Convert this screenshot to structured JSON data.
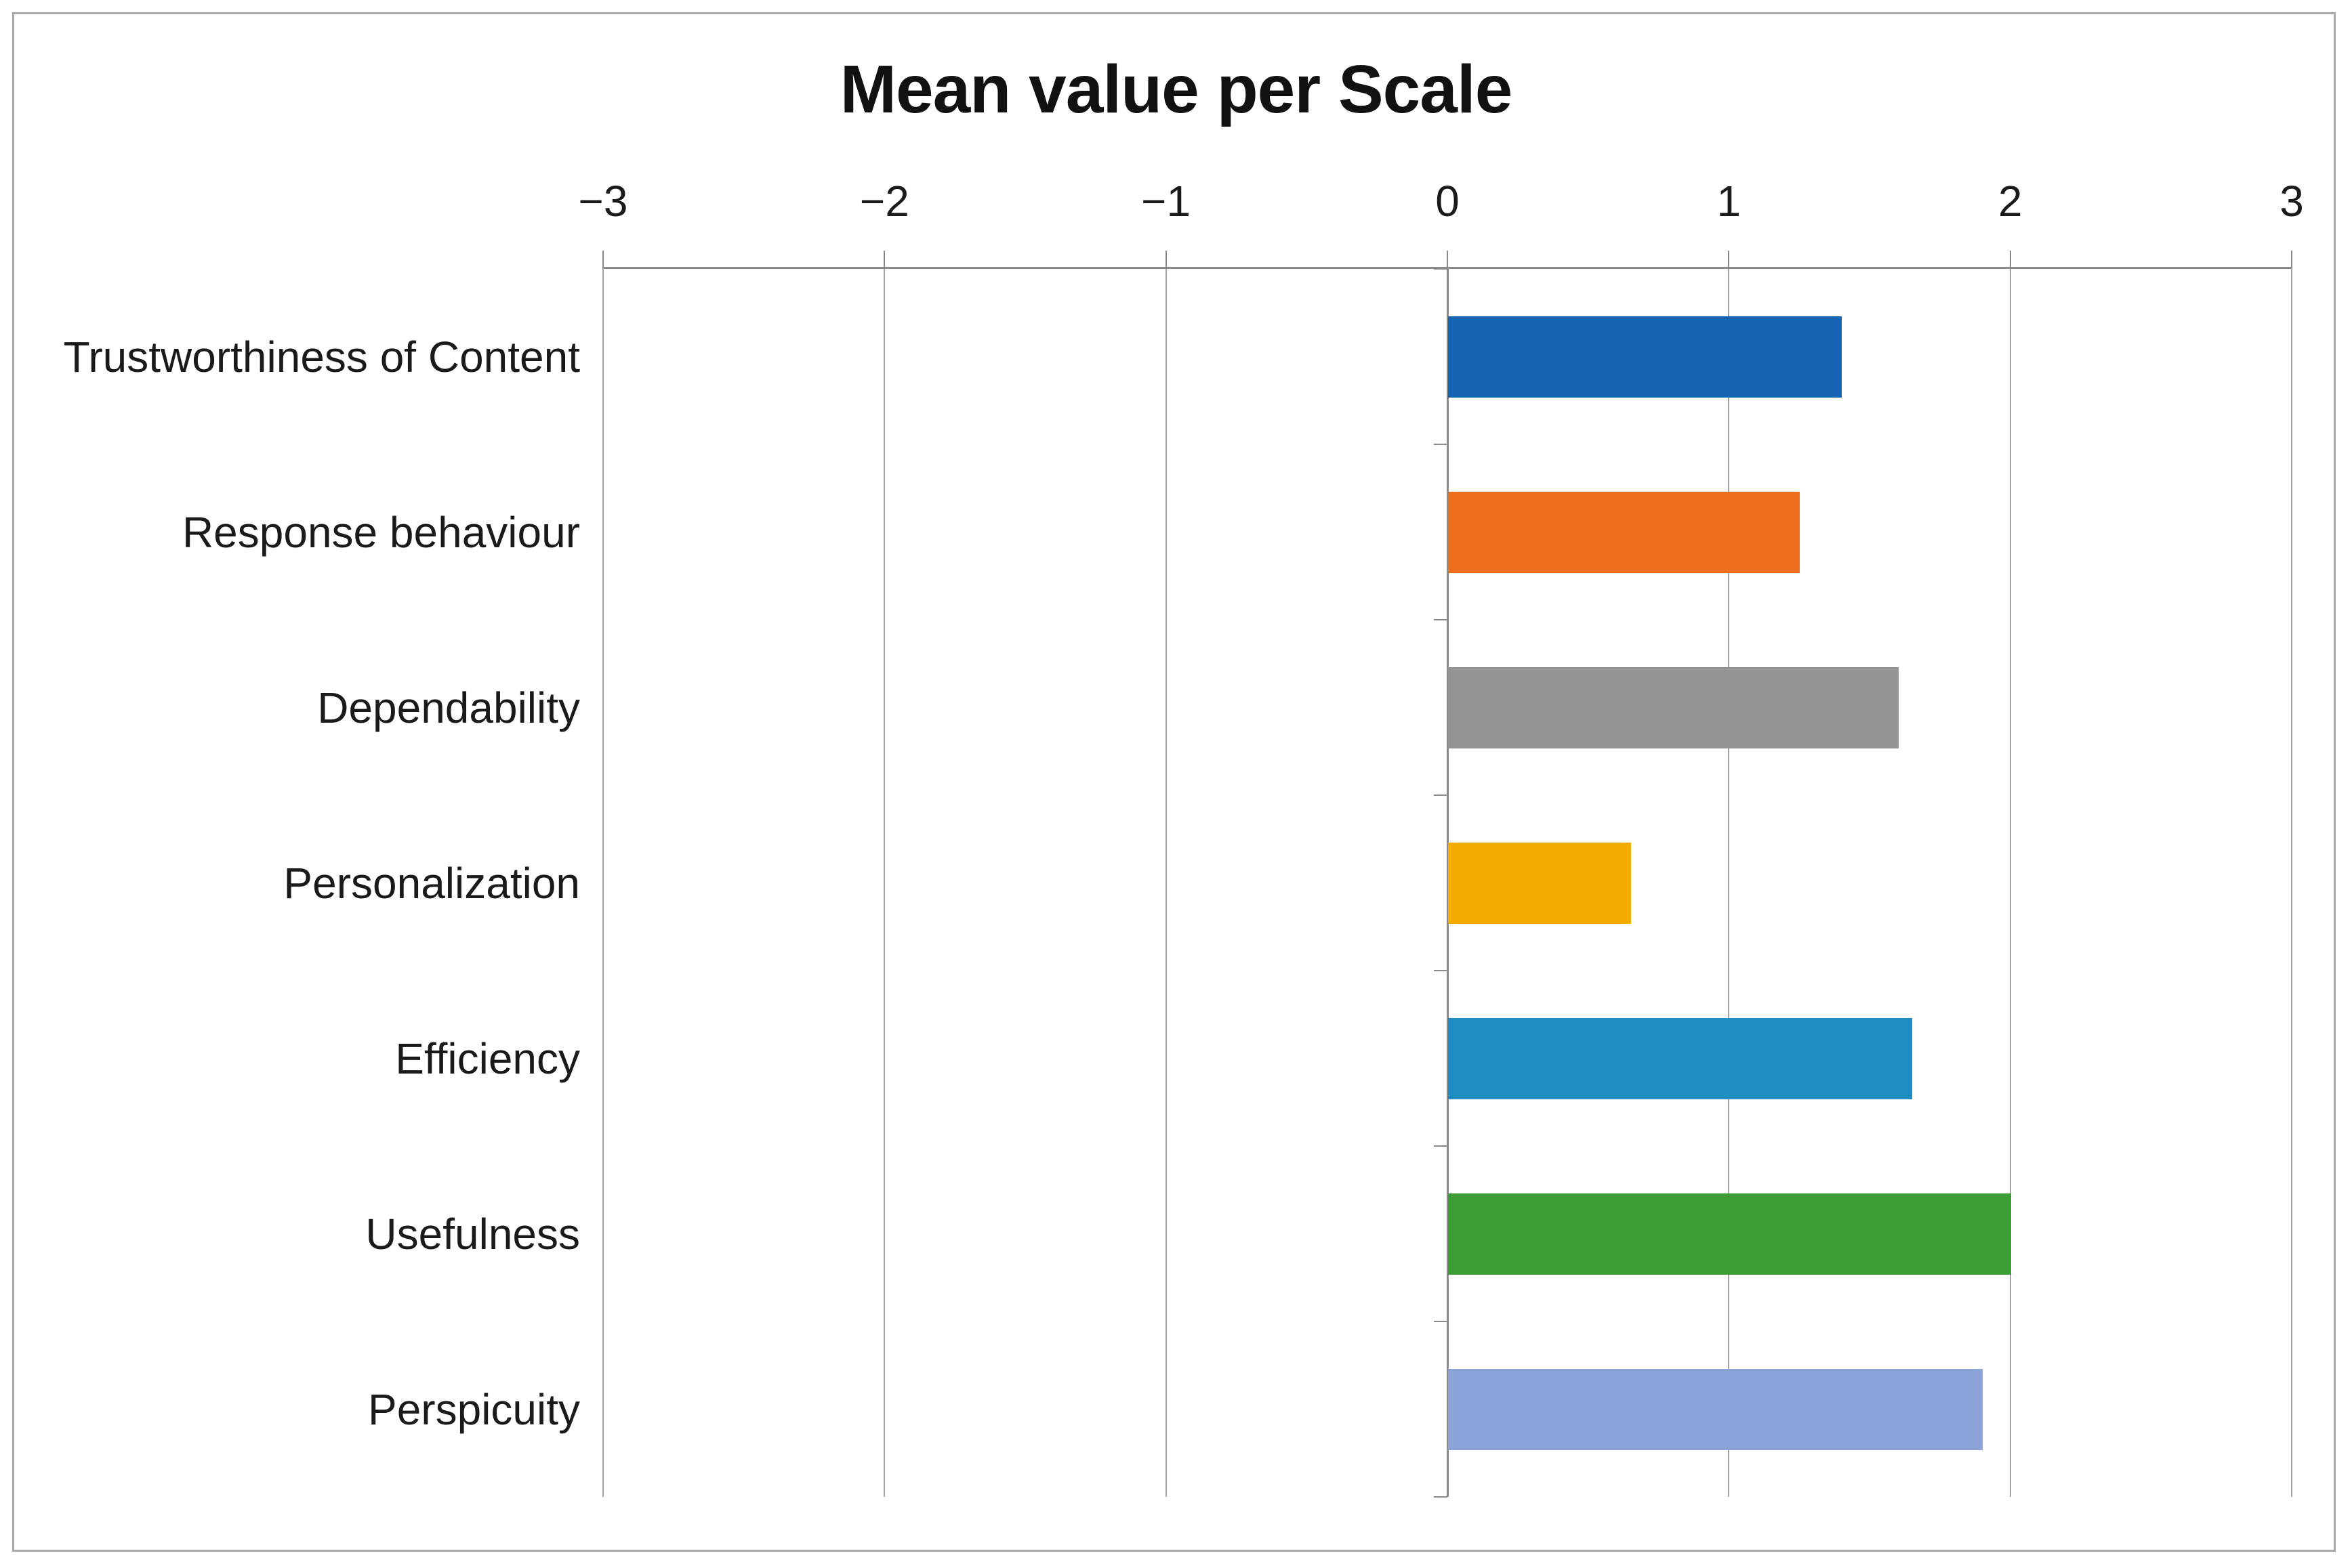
{
  "chart_data": {
    "type": "bar",
    "orientation": "horizontal",
    "title": "Mean value per Scale",
    "categories": [
      "Trustworthiness of Content",
      "Response behaviour",
      "Dependability",
      "Personalization",
      "Efficiency",
      "Usefulness",
      "Perspicuity"
    ],
    "values": [
      1.4,
      1.25,
      1.6,
      0.65,
      1.65,
      2.0,
      1.9
    ],
    "bar_colors": [
      "#1565b2",
      "#ed6e1d",
      "#949494",
      "#f3ab00",
      "#1e8dc3",
      "#3a9d33",
      "#8ba3d9"
    ],
    "xlim": [
      -3,
      3
    ],
    "x_ticks": [
      -3,
      -2,
      -1,
      0,
      1,
      2,
      3
    ],
    "x_tick_labels": [
      "−3",
      "−2",
      "−1",
      "0",
      "1",
      "2",
      "3"
    ],
    "xlabel": "",
    "ylabel": "",
    "grid": "vertical",
    "legend": "none",
    "axis_position": "top",
    "axis_color": "#8a8a8a",
    "gridline_color": "#a3a3a3",
    "text_color": "#1a1a1a",
    "title_color": "#111111",
    "background_color": "#ffffff",
    "border_color": "#a8a8a8"
  }
}
